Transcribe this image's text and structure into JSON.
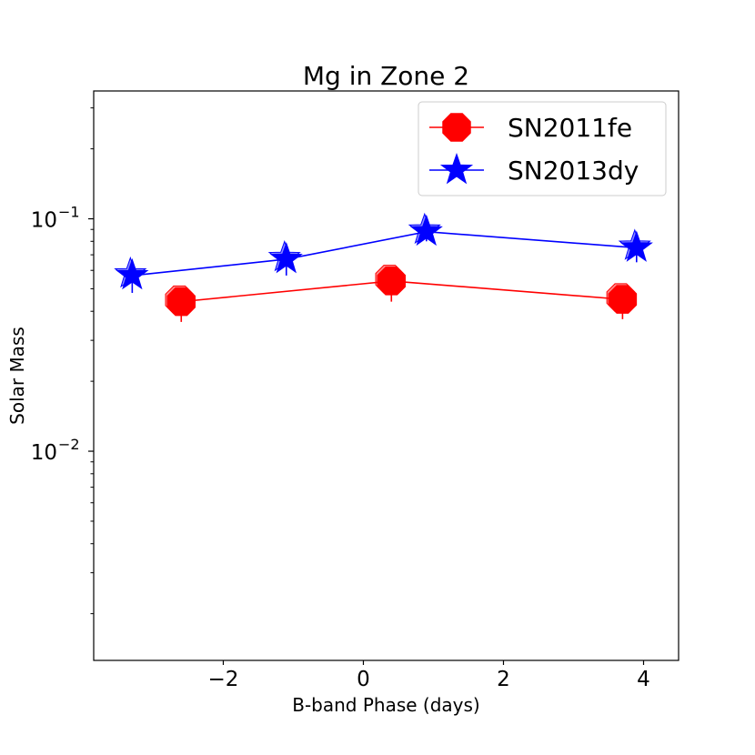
{
  "chart_data": {
    "type": "line",
    "title": "Mg in Zone 2",
    "xlabel": "B-band Phase (days)",
    "ylabel": "Solar Mass",
    "xlim": [
      -3.85,
      4.5
    ],
    "ylim_log10": [
      -2.9,
      -0.45
    ],
    "yscale": "log",
    "grid": false,
    "legend_position": "top-right",
    "x_ticks": [
      {
        "value": -2,
        "label": "−2"
      },
      {
        "value": 0,
        "label": "0"
      },
      {
        "value": 2,
        "label": "2"
      },
      {
        "value": 4,
        "label": "4"
      }
    ],
    "y_ticks": [
      {
        "value": 0.1,
        "base": "10",
        "exp": "−1"
      },
      {
        "value": 0.01,
        "base": "10",
        "exp": "−2"
      }
    ],
    "series": [
      {
        "name": "SN2011fe",
        "color": "#ff0000",
        "marker": "octagon",
        "x": [
          -2.6,
          0.4,
          3.7
        ],
        "y": [
          0.044,
          0.054,
          0.045
        ],
        "err_low": [
          0.036,
          0.044,
          0.037
        ],
        "err_high": [
          0.05,
          0.06,
          0.05
        ]
      },
      {
        "name": "SN2013dy",
        "color": "#0000ff",
        "marker": "star",
        "x": [
          -3.3,
          -1.1,
          0.9,
          3.9
        ],
        "y": [
          0.057,
          0.067,
          0.088,
          0.075
        ],
        "err_low": [
          0.048,
          0.057,
          0.08,
          0.065
        ],
        "err_high": [
          0.063,
          0.074,
          0.093,
          0.081
        ]
      }
    ]
  }
}
